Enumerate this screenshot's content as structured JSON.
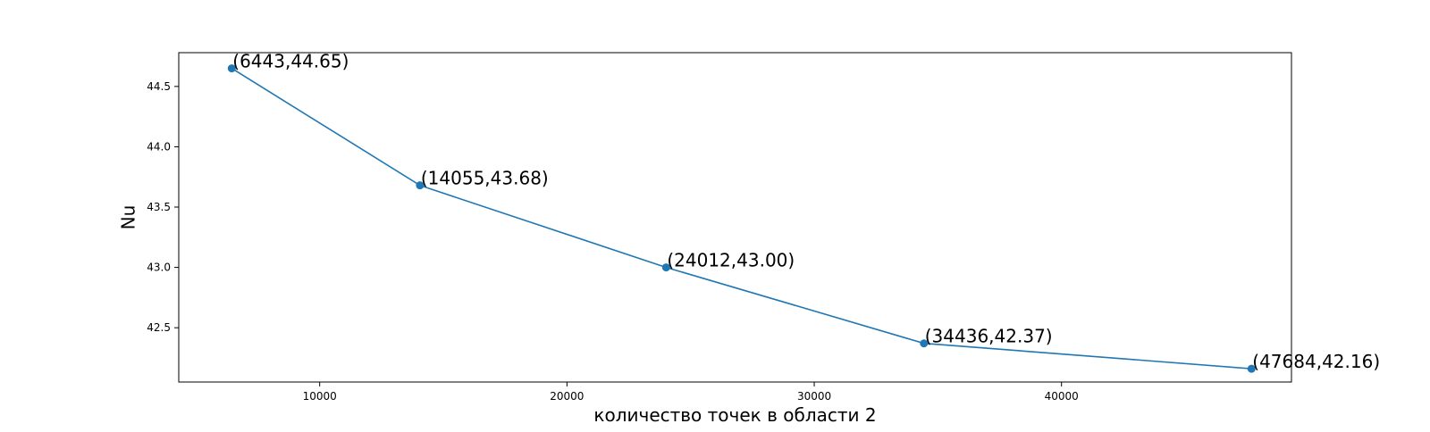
{
  "chart_data": {
    "type": "line",
    "xlabel": "количество точек в области 2",
    "ylabel": "Nu",
    "xlim": [
      4300,
      49300
    ],
    "ylim": [
      42.05,
      44.78
    ],
    "x_ticks": [
      10000,
      20000,
      30000,
      40000
    ],
    "y_ticks": [
      42.5,
      43.0,
      43.5,
      44.0,
      44.5
    ],
    "x_tick_labels": [
      "10000",
      "20000",
      "30000",
      "40000"
    ],
    "y_tick_labels": [
      "42.5",
      "43.0",
      "43.5",
      "44.0",
      "44.5"
    ],
    "grid": false,
    "legend": "none",
    "series": [
      {
        "color": "#1f77b4",
        "x": [
          6443,
          14055,
          24012,
          34436,
          47684
        ],
        "y": [
          44.65,
          43.68,
          43.0,
          42.37,
          42.16
        ],
        "point_labels": [
          "(6443,44.65)",
          "(14055,43.68)",
          "(24012,43.00)",
          "(34436,42.37)",
          "(47684,42.16)"
        ]
      }
    ]
  }
}
